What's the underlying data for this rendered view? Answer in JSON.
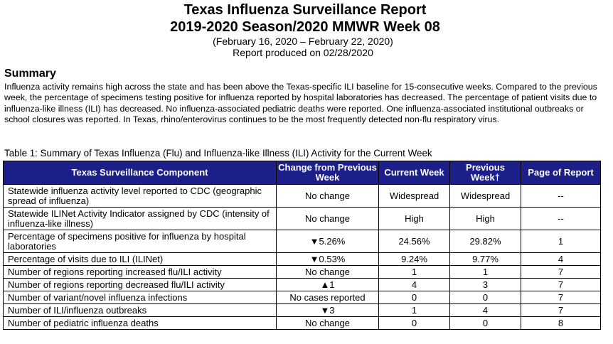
{
  "header": {
    "title_line1": "Texas Influenza Surveillance Report",
    "title_line2": "2019-2020 Season/2020 MMWR Week 08",
    "date_range": "(February 16, 2020 – February 22, 2020)",
    "produced": "Report produced on 02/28/2020"
  },
  "summary": {
    "heading": "Summary",
    "text": "Influenza activity remains high across the state and has been above the Texas-specific ILI baseline for 15-consecutive weeks. Compared to the previous week, the percentage of specimens testing positive for influenza reported by hospital laboratories has decreased. The percentage of patient visits due to influenza-like illness (ILI) has decreased. No influenza-associated pediatric deaths were reported. One influenza-associated institutional outbreaks or school closures was reported.  In Texas, rhino/enterovirus continues to be the most frequently detected non-flu respiratory virus."
  },
  "table": {
    "caption": "Table 1: Summary of Texas Influenza (Flu) and Influenza-like Illness (ILI) Activity for the Current Week",
    "headers": [
      "Texas Surveillance Component",
      "Change from Previous Week",
      "Current Week",
      "Previous Week†",
      "Page of Report"
    ],
    "rows": [
      [
        "Statewide influenza activity level reported to CDC (geographic spread of influenza)",
        "No change",
        "Widespread",
        "Widespread",
        "--"
      ],
      [
        "Statewide ILINet Activity Indicator assigned by CDC (intensity of influenza-like illness)",
        "No change",
        "High",
        "High",
        "--"
      ],
      [
        "Percentage of specimens positive for influenza by hospital laboratories",
        "▼5.26%",
        "24.56%",
        "29.82%",
        "1"
      ],
      [
        "Percentage of visits due to ILI (ILINet)",
        "▼0.53%",
        "9.24%",
        "9.77%",
        "4"
      ],
      [
        "Number of regions reporting increased flu/ILI activity",
        "No change",
        "1",
        "1",
        "7"
      ],
      [
        "Number of regions reporting decreased flu/ILI activity",
        "▲1",
        "4",
        "3",
        "7"
      ],
      [
        "Number of variant/novel influenza infections",
        "No cases reported",
        "0",
        "0",
        "7"
      ],
      [
        "Number of ILI/influenza outbreaks",
        "▼3",
        "1",
        "4",
        "7"
      ],
      [
        "Number of pediatric influenza deaths",
        "No change",
        "0",
        "0",
        "8"
      ]
    ]
  },
  "colors": {
    "table_header_bg": "#1c1f8a",
    "table_header_text": "#ffffff"
  }
}
